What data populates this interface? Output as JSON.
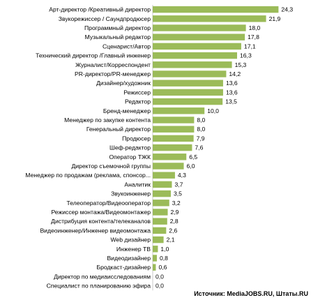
{
  "chart_data": {
    "type": "bar",
    "orientation": "horizontal",
    "categories": [
      "Арт-директор /Креативный директор",
      "Звукорежиссер / Саундпродюсер",
      "Программный директор",
      "Музыкальный редактор",
      "Сценарист/Автор",
      "Технический директор /Главный инженер",
      "Журналист/Корреспондент",
      "PR-директор/PR-менеджер",
      "Дизайнер/художник",
      "Режиссер",
      "Редактор",
      "Бренд-менеджер",
      "Менеджер по закупке контента",
      "Генеральный директор",
      "Продюсер",
      "Шеф-редактор",
      "Оператор ТЖК",
      "Директор съемочной группы",
      "Менеджер по продажам (реклама, спонсор...",
      "Аналитик",
      "Звукоинженер",
      "Телеоператор/Видеооператор",
      "Режиссер монтажа/Видеомонтажер",
      "Дистрибуция контента/телеканалов",
      "Видеоинженер/Инженер видеомонтажа",
      "Web дизайнер",
      "Инженер ТВ",
      "Видеодизайнер",
      "Бродкаст-дизайнер",
      "Директор по медиаисследованиям",
      "Специалист по планированию эфира"
    ],
    "values": [
      24.3,
      21.9,
      18.0,
      17.8,
      17.1,
      16.3,
      15.3,
      14.2,
      13.6,
      13.6,
      13.5,
      10.0,
      8.0,
      8.0,
      7.9,
      7.6,
      6.5,
      6.0,
      4.3,
      3.7,
      3.5,
      3.2,
      2.9,
      2.8,
      2.6,
      2.1,
      1.0,
      0.8,
      0.6,
      0.0,
      0.0
    ],
    "value_labels": [
      "24,3",
      "21,9",
      "18,0",
      "17,8",
      "17,1",
      "16,3",
      "15,3",
      "14,2",
      "13,6",
      "13,6",
      "13,5",
      "10,0",
      "8,0",
      "8,0",
      "7,9",
      "7,6",
      "6,5",
      "6,0",
      "4,3",
      "3,7",
      "3,5",
      "3,2",
      "2,9",
      "2,8",
      "2,6",
      "2,1",
      "1,0",
      "0,8",
      "0,6",
      "0,0",
      "0,0"
    ],
    "xlim": [
      0,
      26
    ],
    "grid": false,
    "legend": "none",
    "bar_color": "#9bbb59",
    "source": "Источник: MediaJOBS.RU, Штаты.RU"
  }
}
